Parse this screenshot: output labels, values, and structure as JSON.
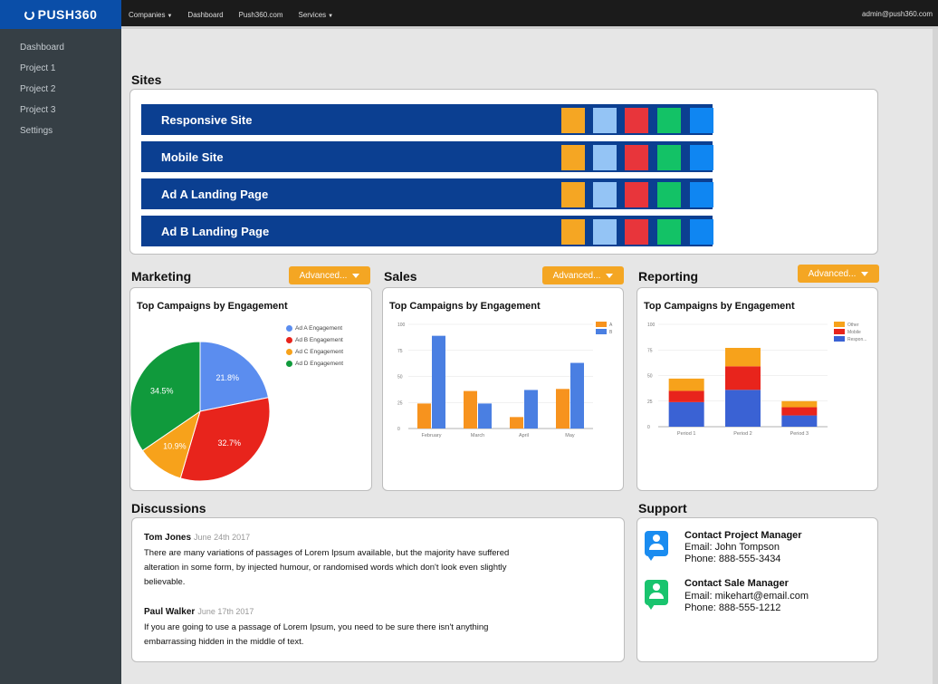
{
  "brand": "PUSH360",
  "topnav": [
    {
      "label": "Companies",
      "dropdown": true
    },
    {
      "label": "Dashboard",
      "dropdown": false
    },
    {
      "label": "Push360.com",
      "dropdown": false
    },
    {
      "label": "Services",
      "dropdown": true
    }
  ],
  "user": "admin@push360.com",
  "sidebar": [
    "Dashboard",
    "Project 1",
    "Project 2",
    "Project 3",
    "Settings"
  ],
  "sites": {
    "title": "Sites",
    "rows": [
      "Responsive Site",
      "Mobile Site",
      "Ad A Landing Page",
      "Ad B Landing Page"
    ],
    "swatch_colors": [
      "#f5a623",
      "#94c4f5",
      "#e8353b",
      "#13c266",
      "#0f86f2"
    ]
  },
  "marketing": {
    "title": "Marketing",
    "advanced": "Advanced...",
    "chart_title": "Top Campaigns by Engagement"
  },
  "sales": {
    "title": "Sales",
    "advanced": "Advanced...",
    "chart_title": "Top Campaigns by Engagement"
  },
  "reporting": {
    "title": "Reporting",
    "advanced": "Advanced...",
    "chart_title": "Top Campaigns by Engagement"
  },
  "chart_data": [
    {
      "type": "pie",
      "title": "Top Campaigns by Engagement",
      "legend": "right",
      "series": [
        {
          "name": "Ad A Engagement",
          "value": 21.8,
          "label": "21.8%",
          "color": "#5b8def"
        },
        {
          "name": "Ad B Engagement",
          "value": 32.7,
          "label": "32.7%",
          "color": "#e8241c"
        },
        {
          "name": "Ad C Engagement",
          "value": 10.9,
          "label": "10.9%",
          "color": "#f7a21b"
        },
        {
          "name": "Ad D Engagement",
          "value": 34.5,
          "label": "34.5%",
          "color": "#109a3c"
        }
      ]
    },
    {
      "type": "bar",
      "title": "Top Campaigns by Engagement",
      "categories": [
        "February",
        "March",
        "April",
        "May"
      ],
      "yticks": [
        0,
        25,
        50,
        75,
        100
      ],
      "ylim": [
        0,
        100
      ],
      "legend": "top-right",
      "series": [
        {
          "name": "A",
          "color": "#f7931e",
          "values": [
            24,
            36,
            11,
            38
          ]
        },
        {
          "name": "B",
          "color": "#4a7fe2",
          "values": [
            89,
            24,
            37,
            63
          ]
        }
      ]
    },
    {
      "type": "bar",
      "stacked": true,
      "title": "Top Campaigns by Engagement",
      "categories": [
        "Period 1",
        "Period 2",
        "Period 3"
      ],
      "yticks": [
        0,
        25,
        50,
        75,
        100
      ],
      "ylim": [
        0,
        100
      ],
      "legend": "top-right",
      "series": [
        {
          "name": "Respon...",
          "color": "#3a62d4",
          "values": [
            24,
            36,
            11
          ]
        },
        {
          "name": "Mobile",
          "color": "#e8241c",
          "values": [
            11,
            23,
            8
          ]
        },
        {
          "name": "Other",
          "color": "#f7a21b",
          "values": [
            12,
            18,
            6
          ]
        }
      ]
    }
  ],
  "discussions": {
    "title": "Discussions",
    "items": [
      {
        "name": "Tom Jones",
        "date": "June 24th 2017",
        "text": "There are many variations of passages of Lorem Ipsum available, but the majority have suffered alteration in some form, by injected humour, or randomised words which don't look even slightly believable."
      },
      {
        "name": "Paul Walker",
        "date": "June 17th 2017",
        "text": "If you are going to use a passage of Lorem Ipsum, you need to be sure there isn't anything embarrassing hidden in the middle of text."
      }
    ]
  },
  "support": {
    "title": "Support",
    "contacts": [
      {
        "title": "Contact Project Manager",
        "line1": "Email: John Tompson",
        "line2": "Phone: 888-555-3434",
        "color": "#1a8cf0"
      },
      {
        "title": "Contact Sale Manager",
        "line1": "Email: mikehart@email.com",
        "line2": "Phone: 888-555-1212",
        "color": "#19c46e"
      }
    ]
  }
}
